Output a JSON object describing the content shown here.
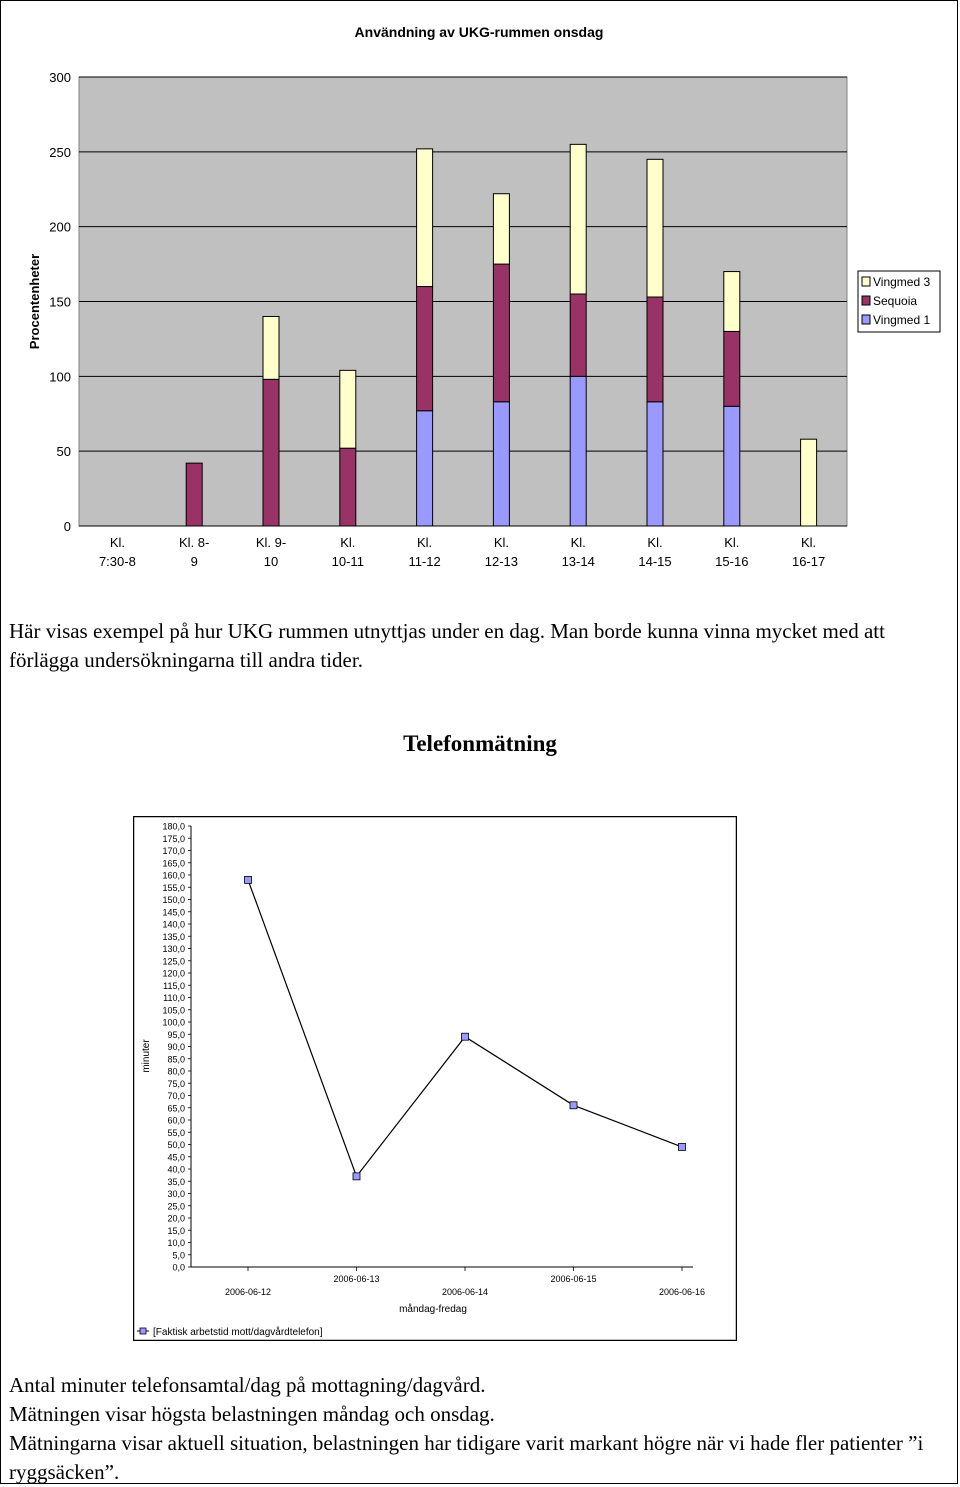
{
  "chart_data": [
    {
      "type": "bar",
      "stacked": true,
      "title": "Användning av UKG-rummen onsdag",
      "ylabel": "Procentenheter",
      "xlabel": "",
      "ylim": [
        0,
        300
      ],
      "yticks": [
        "0",
        "50",
        "100",
        "150",
        "200",
        "250",
        "300"
      ],
      "categories": [
        [
          "Kl.",
          "7:30-8"
        ],
        [
          "Kl. 8-",
          "9"
        ],
        [
          "Kl. 9-",
          "10"
        ],
        [
          "Kl.",
          "10-11"
        ],
        [
          "Kl.",
          "11-12"
        ],
        [
          "Kl.",
          "12-13"
        ],
        [
          "Kl.",
          "13-14"
        ],
        [
          "Kl.",
          "14-15"
        ],
        [
          "Kl.",
          "15-16"
        ],
        [
          "Kl.",
          "16-17"
        ]
      ],
      "series": [
        {
          "name": "Vingmed 1",
          "color": "#9999FF",
          "values": [
            0,
            0,
            0,
            0,
            77,
            83,
            100,
            83,
            80,
            0
          ]
        },
        {
          "name": "Sequoia",
          "color": "#993366",
          "values": [
            0,
            42,
            98,
            52,
            83,
            92,
            55,
            70,
            50,
            0
          ]
        },
        {
          "name": "Vingmed 3",
          "color": "#FFFFCC",
          "values": [
            0,
            0,
            42,
            52,
            92,
            47,
            100,
            92,
            40,
            58
          ]
        }
      ],
      "legend": [
        "Vingmed 3",
        "Sequoia",
        "Vingmed 1"
      ],
      "legend_position": "right",
      "grid": true,
      "plot_background": "#C0C0C0"
    },
    {
      "type": "line",
      "title": "Telefonmätning",
      "ylabel": "minuter",
      "xlabel": "måndag-fredag",
      "ylim": [
        0,
        180
      ],
      "ytick_step": 5,
      "x": [
        "2006-06-12",
        "2006-06-13",
        "2006-06-14",
        "2006-06-15",
        "2006-06-16"
      ],
      "series": [
        {
          "name": "[Faktisk arbetstid mott/dagvårdtelefon]",
          "color": "#000000",
          "marker_color": "#9999FF",
          "values": [
            158,
            37,
            94,
            66,
            49
          ]
        }
      ],
      "legend_position": "bottom",
      "grid": false
    }
  ],
  "captions": {
    "chart1": "Här visas exempel på hur UKG rummen utnyttjas under en dag. Man borde kunna vinna mycket med att förlägga undersökningarna till andra tider.",
    "chart2_lines": [
      "Antal minuter telefonsamtal/dag på mottagning/dagvård.",
      "Mätningen visar högsta belastningen måndag och onsdag.",
      "Mätningarna visar aktuell situation, belastningen har tidigare varit markant högre när vi hade fler patienter ”i ryggsäcken”."
    ]
  }
}
